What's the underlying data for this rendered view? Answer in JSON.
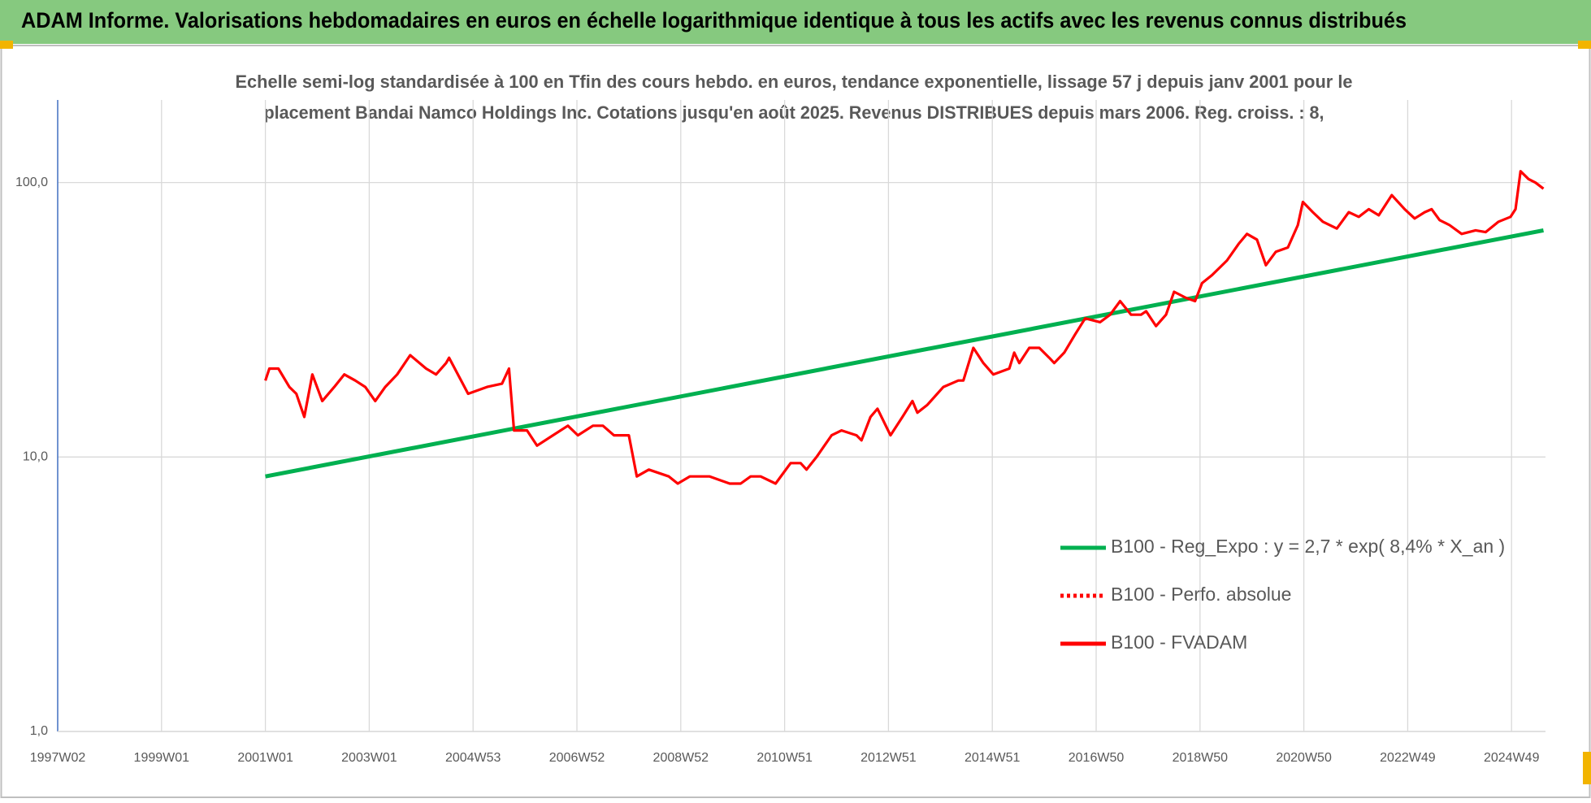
{
  "chart_data": {
    "type": "line",
    "title": "ADAM Informe. Valorisations hebdomadaires en euros en échelle logarithmique identique à tous les actifs avec les revenus connus distribués",
    "subtitle": [
      "Echelle semi-log standardisée à 100 en Tfin des cours hebdo. en euros, tendance exponentielle, lissage 57 j depuis janv 2001 pour le",
      "placement Bandai Namco Holdings Inc. Cotations jusqu'en août 2025. Revenus DISTRIBUES depuis mars 2006. Reg. croiss. : 8,"
    ],
    "log_y": true,
    "grid": true,
    "legend_position": "right",
    "xlim": [
      0,
      1490
    ],
    "xticks": [
      {
        "value": 0,
        "label": "1997W02"
      },
      {
        "value": 104,
        "label": "1999W01"
      },
      {
        "value": 208,
        "label": "2001W01"
      },
      {
        "value": 312,
        "label": "2003W01"
      },
      {
        "value": 416,
        "label": "2004W53"
      },
      {
        "value": 520,
        "label": "2006W52"
      },
      {
        "value": 624,
        "label": "2008W52"
      },
      {
        "value": 728,
        "label": "2010W51"
      },
      {
        "value": 832,
        "label": "2012W51"
      },
      {
        "value": 936,
        "label": "2014W51"
      },
      {
        "value": 1040,
        "label": "2016W50"
      },
      {
        "value": 1144,
        "label": "2018W50"
      },
      {
        "value": 1248,
        "label": "2020W50"
      },
      {
        "value": 1352,
        "label": "2022W49"
      },
      {
        "value": 1456,
        "label": "2024W49"
      }
    ],
    "ylim": [
      1,
      200
    ],
    "yticks": [
      {
        "value": 1,
        "label": "1,0"
      },
      {
        "value": 10,
        "label": "10,0"
      },
      {
        "value": 100,
        "label": "100,0"
      }
    ],
    "series": [
      {
        "name": "B100 - Reg_Expo : y = 2,7 * exp( 8,4% *  X_an )",
        "color": "#00b050",
        "style": "solid",
        "x": [
          208,
          1488
        ],
        "values": [
          8.5,
          67
        ]
      },
      {
        "name": "B100 - Perfo. absolue",
        "color": "#ff0000",
        "style": "dotted",
        "x": [],
        "values": []
      },
      {
        "name": "B100 - FVADAM",
        "color": "#ff0000",
        "style": "solid",
        "x": [
          208,
          212,
          221,
          232,
          239,
          247,
          255,
          265,
          277,
          287,
          298,
          308,
          318,
          328,
          340,
          353,
          369,
          379,
          389,
          392,
          404,
          411,
          430,
          445,
          452,
          457,
          470,
          480,
          496,
          511,
          521,
          536,
          546,
          557,
          572,
          580,
          592,
          612,
          621,
          633,
          653,
          673,
          684,
          694,
          704,
          719,
          734,
          744,
          750,
          760,
          775,
          785,
          800,
          805,
          814,
          821,
          834,
          846,
          856,
          861,
          871,
          887,
          902,
          907,
          917,
          927,
          937,
          953,
          958,
          963,
          973,
          983,
          993,
          998,
          1008,
          1019,
          1029,
          1044,
          1054,
          1064,
          1075,
          1085,
          1090,
          1100,
          1110,
          1118,
          1130,
          1139,
          1146,
          1156,
          1171,
          1183,
          1191,
          1201,
          1210,
          1220,
          1232,
          1242,
          1247,
          1257,
          1267,
          1281,
          1293,
          1303,
          1313,
          1323,
          1336,
          1349,
          1359,
          1369,
          1376,
          1384,
          1394,
          1406,
          1420,
          1430,
          1443,
          1455,
          1460,
          1465,
          1473,
          1480,
          1488
        ],
        "values": [
          19,
          21,
          21,
          18,
          17,
          14,
          20,
          16,
          18,
          20,
          19,
          18,
          16,
          18,
          20,
          23.5,
          21,
          20,
          22,
          23,
          19,
          17,
          18,
          18.5,
          21,
          12.5,
          12.5,
          11,
          12,
          13,
          12,
          13,
          13,
          12,
          12,
          8.5,
          9,
          8.5,
          8,
          8.5,
          8.5,
          8,
          8,
          8.5,
          8.5,
          8,
          9.5,
          9.5,
          9,
          10,
          12,
          12.5,
          12,
          11.5,
          14,
          15,
          12,
          14,
          16,
          14.5,
          15.5,
          18,
          19,
          19,
          25,
          22,
          20,
          21,
          24,
          22,
          25,
          25,
          23,
          22,
          24,
          28,
          32,
          31,
          33,
          37,
          33,
          33,
          34,
          30,
          33,
          40,
          38,
          37,
          43,
          46,
          52,
          60,
          65,
          62,
          50,
          56,
          58,
          70,
          85,
          78,
          72,
          68,
          78,
          75,
          80,
          76,
          90,
          80,
          74,
          78,
          80,
          73,
          70,
          65,
          67,
          66,
          72,
          75,
          80,
          110,
          103,
          100,
          95
        ]
      }
    ]
  }
}
